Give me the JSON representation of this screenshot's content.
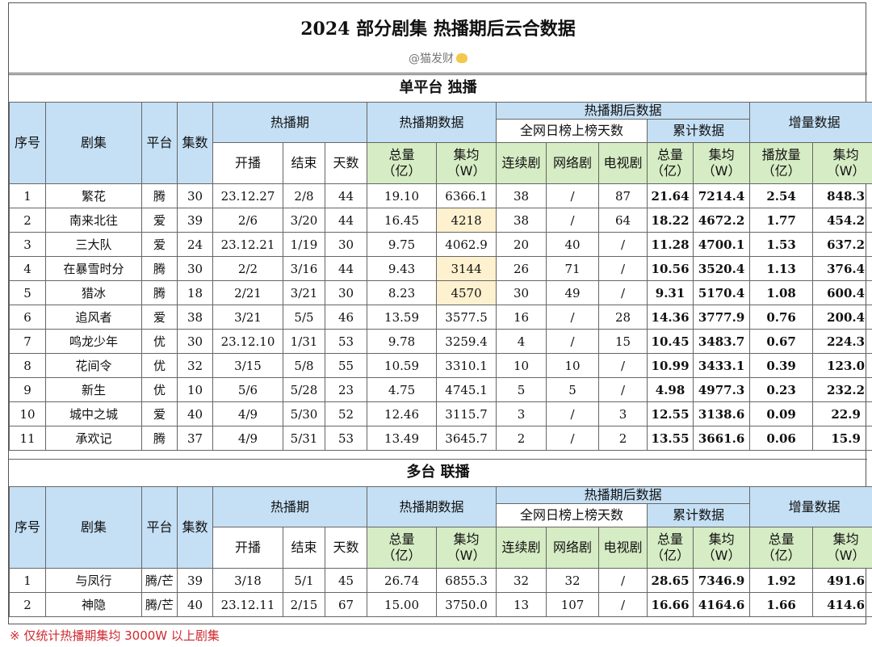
{
  "title": "2024 部分剧集 热播期后云合数据",
  "author": "@猫发财",
  "author_icon": "cat-face-icon",
  "highlight_color": "#fdf1cf",
  "header_colors": {
    "blue": "#c5e0f5",
    "green": "#d6ecc4"
  },
  "headers": {
    "no": "序号",
    "drama": "剧集",
    "platform": "平台",
    "episodes": "集数",
    "hot_period": "热播期",
    "start": "开播",
    "end": "结束",
    "days": "天数",
    "hot_data": "热播期数据",
    "total": "总量\n（亿）",
    "avg": "集均\n（W）",
    "post_data": "热播期后数据",
    "chart_days": "全网日榜上榜天数",
    "series": "连续剧",
    "web": "网络剧",
    "tv": "电视剧",
    "cumulative": "累计数据",
    "increment": "增量数据",
    "play": "播放量\n（亿）",
    "total_short": "总量\n（亿）"
  },
  "sections": [
    {
      "title": "单平台 独播",
      "rows": [
        {
          "no": "1",
          "name": "繁花",
          "plat": "腾",
          "eps": "30",
          "start": "23.12.27",
          "end": "2/8",
          "days": "44",
          "hot_total": "19.10",
          "hot_avg": "6366.1",
          "series": "38",
          "web": "/",
          "tv": "87",
          "cum_total": "21.64",
          "cum_avg": "7214.4",
          "inc_total": "2.54",
          "inc_avg": "848.3",
          "hl": false
        },
        {
          "no": "2",
          "name": "南来北往",
          "plat": "爱",
          "eps": "39",
          "start": "2/6",
          "end": "3/20",
          "days": "44",
          "hot_total": "16.45",
          "hot_avg": "4218",
          "series": "38",
          "web": "/",
          "tv": "64",
          "cum_total": "18.22",
          "cum_avg": "4672.2",
          "inc_total": "1.77",
          "inc_avg": "454.2",
          "hl": true
        },
        {
          "no": "3",
          "name": "三大队",
          "plat": "爱",
          "eps": "24",
          "start": "23.12.21",
          "end": "1/19",
          "days": "30",
          "hot_total": "9.75",
          "hot_avg": "4062.9",
          "series": "20",
          "web": "40",
          "tv": "/",
          "cum_total": "11.28",
          "cum_avg": "4700.1",
          "inc_total": "1.53",
          "inc_avg": "637.2",
          "hl": false
        },
        {
          "no": "4",
          "name": "在暴雪时分",
          "plat": "腾",
          "eps": "30",
          "start": "2/2",
          "end": "3/16",
          "days": "44",
          "hot_total": "9.43",
          "hot_avg": "3144",
          "series": "26",
          "web": "71",
          "tv": "/",
          "cum_total": "10.56",
          "cum_avg": "3520.4",
          "inc_total": "1.13",
          "inc_avg": "376.4",
          "hl": true
        },
        {
          "no": "5",
          "name": "猎冰",
          "plat": "腾",
          "eps": "18",
          "start": "2/21",
          "end": "3/21",
          "days": "30",
          "hot_total": "8.23",
          "hot_avg": "4570",
          "series": "30",
          "web": "49",
          "tv": "/",
          "cum_total": "9.31",
          "cum_avg": "5170.4",
          "inc_total": "1.08",
          "inc_avg": "600.4",
          "hl": true
        },
        {
          "no": "6",
          "name": "追风者",
          "plat": "爱",
          "eps": "38",
          "start": "3/21",
          "end": "5/5",
          "days": "46",
          "hot_total": "13.59",
          "hot_avg": "3577.5",
          "series": "16",
          "web": "/",
          "tv": "28",
          "cum_total": "14.36",
          "cum_avg": "3777.9",
          "inc_total": "0.76",
          "inc_avg": "200.4",
          "hl": false
        },
        {
          "no": "7",
          "name": "鸣龙少年",
          "plat": "优",
          "eps": "30",
          "start": "23.12.10",
          "end": "1/31",
          "days": "53",
          "hot_total": "9.78",
          "hot_avg": "3259.4",
          "series": "4",
          "web": "/",
          "tv": "15",
          "cum_total": "10.45",
          "cum_avg": "3483.7",
          "inc_total": "0.67",
          "inc_avg": "224.3",
          "hl": false
        },
        {
          "no": "8",
          "name": "花间令",
          "plat": "优",
          "eps": "32",
          "start": "3/15",
          "end": "5/8",
          "days": "55",
          "hot_total": "10.59",
          "hot_avg": "3310.1",
          "series": "10",
          "web": "10",
          "tv": "/",
          "cum_total": "10.99",
          "cum_avg": "3433.1",
          "inc_total": "0.39",
          "inc_avg": "123.0",
          "hl": false
        },
        {
          "no": "9",
          "name": "新生",
          "plat": "优",
          "eps": "10",
          "start": "5/6",
          "end": "5/28",
          "days": "23",
          "hot_total": "4.75",
          "hot_avg": "4745.1",
          "series": "5",
          "web": "5",
          "tv": "/",
          "cum_total": "4.98",
          "cum_avg": "4977.3",
          "inc_total": "0.23",
          "inc_avg": "232.2",
          "hl": false
        },
        {
          "no": "10",
          "name": "城中之城",
          "plat": "爱",
          "eps": "40",
          "start": "4/9",
          "end": "5/30",
          "days": "52",
          "hot_total": "12.46",
          "hot_avg": "3115.7",
          "series": "3",
          "web": "/",
          "tv": "3",
          "cum_total": "12.55",
          "cum_avg": "3138.6",
          "inc_total": "0.09",
          "inc_avg": "22.9",
          "hl": false
        },
        {
          "no": "11",
          "name": "承欢记",
          "plat": "腾",
          "eps": "37",
          "start": "4/9",
          "end": "5/31",
          "days": "53",
          "hot_total": "13.49",
          "hot_avg": "3645.7",
          "series": "2",
          "web": "/",
          "tv": "2",
          "cum_total": "13.55",
          "cum_avg": "3661.6",
          "inc_total": "0.06",
          "inc_avg": "15.9",
          "hl": false
        }
      ]
    },
    {
      "title": "多台 联播",
      "rows": [
        {
          "no": "1",
          "name": "与凤行",
          "plat": "腾/芒",
          "eps": "39",
          "start": "3/18",
          "end": "5/1",
          "days": "45",
          "hot_total": "26.74",
          "hot_avg": "6855.3",
          "series": "32",
          "web": "32",
          "tv": "/",
          "cum_total": "28.65",
          "cum_avg": "7346.9",
          "inc_total": "1.92",
          "inc_avg": "491.6",
          "hl": false
        },
        {
          "no": "2",
          "name": "神隐",
          "plat": "腾/芒",
          "eps": "40",
          "start": "23.12.11",
          "end": "2/15",
          "days": "67",
          "hot_total": "15.00",
          "hot_avg": "3750.0",
          "series": "13",
          "web": "107",
          "tv": "/",
          "cum_total": "16.66",
          "cum_avg": "4164.6",
          "inc_total": "1.66",
          "inc_avg": "414.6",
          "hl": false
        }
      ]
    }
  ],
  "note": "※ 仅统计热播期集均 3000W 以上剧集"
}
